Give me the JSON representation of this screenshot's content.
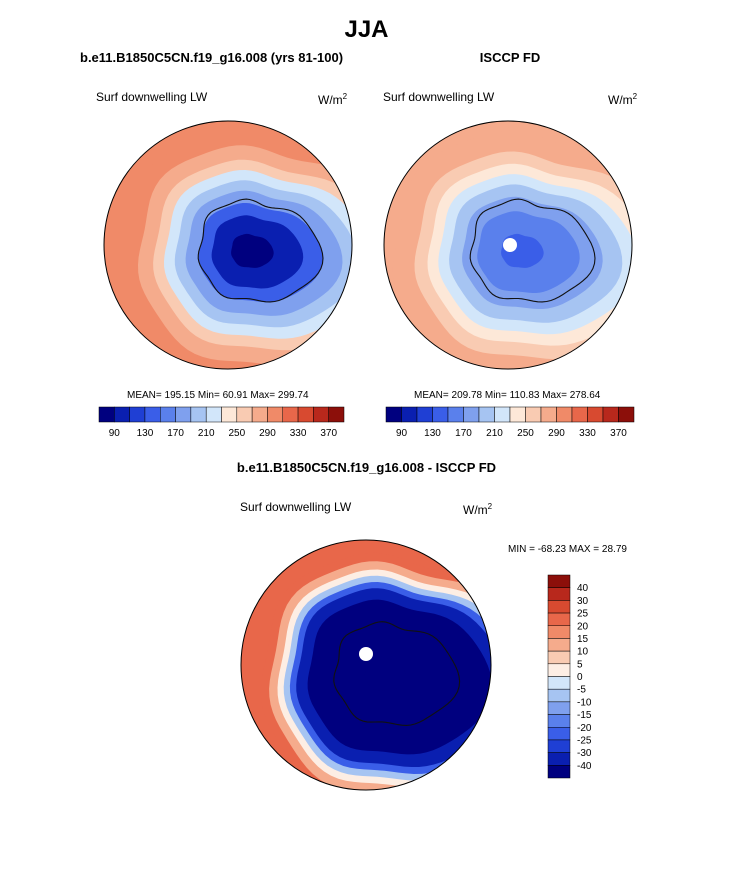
{
  "title": "JJA",
  "panels": [
    {
      "case_title": "b.e11.B1850C5CN.f19_g16.008 (yrs 81-100)",
      "variable": "Surf downwelling LW",
      "units": "W/m",
      "units_exp": "2",
      "stats": "MEAN= 195.15  Min=  60.91  Max= 299.74"
    },
    {
      "case_title": "ISCCP FD",
      "variable": "Surf downwelling LW",
      "units": "W/m",
      "units_exp": "2",
      "stats": "MEAN= 209.78  Min= 110.83  Max= 278.64"
    },
    {
      "case_title": "b.e11.B1850C5CN.f19_g16.008 - ISCCP FD",
      "variable": "Surf downwelling LW",
      "units": "W/m",
      "units_exp": "2",
      "stats": "MIN = -68.23 MAX =  28.79"
    }
  ],
  "colors": {
    "abs_scale": [
      "#00007f",
      "#0a1fb0",
      "#1f3fd4",
      "#3a5ee8",
      "#5a80ec",
      "#7fa0ee",
      "#a6c4f2",
      "#d2e6fa",
      "#fde8d8",
      "#f9cbb2",
      "#f5ab8c",
      "#f08a68",
      "#e8674a",
      "#d84a30",
      "#b8281c",
      "#8c0f0a"
    ],
    "diff_scale": [
      "#00007f",
      "#0a1fb0",
      "#1f3fd4",
      "#3a5ee8",
      "#5a80ec",
      "#7fa0ee",
      "#a6c4f2",
      "#d2e6fa",
      "#fdeee4",
      "#f9cbb2",
      "#f5ab8c",
      "#f08a68",
      "#e8674a",
      "#d84a30",
      "#b8281c",
      "#8c0f0a"
    ]
  },
  "chart_data": [
    {
      "type": "heatmap",
      "projection": "south-polar-stereographic",
      "title": "b.e11.B1850C5CN.f19_g16.008 (yrs 81-100)",
      "variable": "Surf downwelling LW",
      "units": "W/m^2",
      "mean": 195.15,
      "min": 60.91,
      "max": 299.74,
      "colorbar_ticks": [
        "90",
        "130",
        "170",
        "210",
        "250",
        "290",
        "330",
        "370"
      ],
      "contour_levels": [
        70,
        90,
        110,
        130,
        150,
        170,
        190,
        210,
        230,
        250,
        270,
        290,
        310,
        330,
        350,
        370
      ],
      "field_profile": [
        {
          "rank": 0.0,
          "value": 70
        },
        {
          "rank": 0.18,
          "value": 90
        },
        {
          "rank": 0.3,
          "value": 130
        },
        {
          "rank": 0.42,
          "value": 170
        },
        {
          "rank": 0.52,
          "value": 200
        },
        {
          "rank": 0.62,
          "value": 220
        },
        {
          "rank": 0.72,
          "value": 250
        },
        {
          "rank": 0.86,
          "value": 275
        },
        {
          "rank": 1.0,
          "value": 295
        }
      ]
    },
    {
      "type": "heatmap",
      "projection": "south-polar-stereographic",
      "title": "ISCCP FD",
      "variable": "Surf downwelling LW",
      "units": "W/m^2",
      "mean": 209.78,
      "min": 110.83,
      "max": 278.64,
      "colorbar_ticks": [
        "90",
        "130",
        "170",
        "210",
        "250",
        "290",
        "330",
        "370"
      ],
      "contour_levels": [
        70,
        90,
        110,
        130,
        150,
        170,
        190,
        210,
        230,
        250,
        270,
        290,
        310,
        330,
        350,
        370
      ],
      "field_profile": [
        {
          "rank": 0.0,
          "value": 130
        },
        {
          "rank": 0.22,
          "value": 150
        },
        {
          "rank": 0.36,
          "value": 170
        },
        {
          "rank": 0.48,
          "value": 195
        },
        {
          "rank": 0.58,
          "value": 215
        },
        {
          "rank": 0.68,
          "value": 235
        },
        {
          "rank": 0.8,
          "value": 250
        },
        {
          "rank": 1.0,
          "value": 270
        }
      ]
    },
    {
      "type": "heatmap",
      "projection": "south-polar-stereographic",
      "title": "b.e11.B1850C5CN.f19_g16.008 - ISCCP FD",
      "variable": "Surf downwelling LW",
      "units": "W/m^2",
      "min": -68.23,
      "max": 28.79,
      "colorbar_ticks": [
        "40",
        "30",
        "25",
        "20",
        "15",
        "10",
        "5",
        "0",
        "-5",
        "-10",
        "-15",
        "-20",
        "-25",
        "-30",
        "-40"
      ],
      "contour_levels": [
        -40,
        -30,
        -25,
        -20,
        -15,
        -10,
        -5,
        0,
        5,
        10,
        15,
        20,
        25,
        30,
        40
      ],
      "field_profile": [
        {
          "rank": 0.0,
          "value": -45
        },
        {
          "rank": 0.55,
          "value": -42
        },
        {
          "rank": 0.66,
          "value": -30
        },
        {
          "rank": 0.72,
          "value": -20
        },
        {
          "rank": 0.78,
          "value": -5
        },
        {
          "rank": 0.84,
          "value": 5
        },
        {
          "rank": 0.92,
          "value": 15
        },
        {
          "rank": 1.0,
          "value": 25
        }
      ]
    }
  ]
}
